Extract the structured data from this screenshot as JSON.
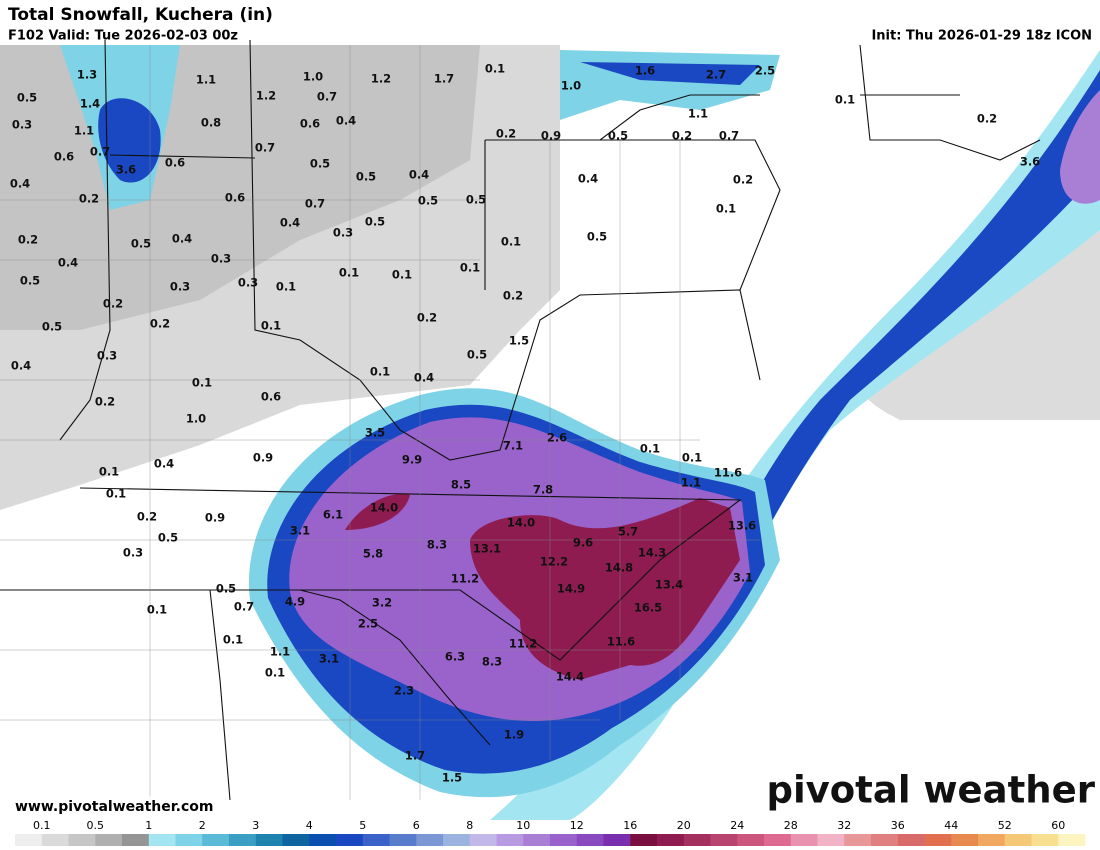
{
  "header": {
    "title": "Total Snowfall, Kuchera (in)",
    "valid": "F102 Valid: Tue 2026-02-03 00z",
    "init": "Init: Thu 2026-01-29 18z ICON"
  },
  "map": {
    "labels": [
      "1.3",
      "1.1",
      "1.0",
      "1.2",
      "1.7",
      "0.1",
      "1.0",
      "1.6",
      "2.7",
      "2.5",
      "0.1",
      "0.5",
      "1.4",
      "1.2",
      "0.7",
      "1.1",
      "0.3",
      "1.1",
      "0.8",
      "0.6",
      "0.4",
      "0.2",
      "0.9",
      "0.5",
      "0.2",
      "0.7",
      "0.2",
      "0.6",
      "0.7",
      "0.6",
      "0.7",
      "0.5",
      "3.6",
      "0.5",
      "0.4",
      "3.6",
      "0.4",
      "0.2",
      "0.6",
      "0.7",
      "0.5",
      "0.5",
      "0.4",
      "0.2",
      "0.4",
      "0.3",
      "0.5",
      "0.1",
      "0.2",
      "0.5",
      "0.4",
      "0.1",
      "0.5",
      "0.4",
      "0.3",
      "0.1",
      "0.1",
      "0.1",
      "0.5",
      "0.3",
      "0.3",
      "0.1",
      "0.2",
      "0.2",
      "0.2",
      "0.5",
      "0.2",
      "0.1",
      "1.5",
      "0.3",
      "0.5",
      "0.4",
      "0.1",
      "0.4",
      "0.1",
      "0.6",
      "0.2",
      "1.0",
      "3.5",
      "2.6",
      "7.1",
      "0.1",
      "0.4",
      "0.9",
      "9.9",
      "0.1",
      "0.1",
      "11.6",
      "8.5",
      "1.1",
      "7.8",
      "0.1",
      "6.1",
      "14.0",
      "0.2",
      "0.9",
      "14.0",
      "13.6",
      "3.1",
      "5.7",
      "0.5",
      "8.3",
      "9.6",
      "0.3",
      "5.8",
      "13.1",
      "14.3",
      "12.2",
      "14.8",
      "11.2",
      "3.1",
      "13.4",
      "0.5",
      "14.9",
      "4.9",
      "0.7",
      "3.2",
      "16.5",
      "0.1",
      "2.5",
      "0.1",
      "11.2",
      "11.6",
      "1.1",
      "6.3",
      "3.1",
      "8.3",
      "0.1",
      "14.4",
      "2.3",
      "1.9",
      "1.7",
      "1.5"
    ]
  },
  "footer": {
    "url": "www.pivotalweather.com",
    "logo": "pivotal weather"
  },
  "colorbar": {
    "labels": [
      "0.1",
      "0.5",
      "1",
      "2",
      "3",
      "4",
      "5",
      "6",
      "8",
      "10",
      "12",
      "16",
      "20",
      "24",
      "28",
      "32",
      "36",
      "44",
      "52",
      "60"
    ],
    "colors": [
      "#eeeeee",
      "#dadada",
      "#c6c6c6",
      "#b0b0b0",
      "#959595",
      "#a3e6f2",
      "#7fd3e6",
      "#5bbad6",
      "#3b9fc4",
      "#1f83b0",
      "#0e65a0",
      "#0b4fb0",
      "#1a47c2",
      "#3a62c8",
      "#5a7ccc",
      "#7b98d4",
      "#9bb3de",
      "#c3b9e8",
      "#b89ae0",
      "#a97fd6",
      "#9a63cc",
      "#8a4abf",
      "#7a2fae",
      "#7a1040",
      "#8e1c50",
      "#a3305f",
      "#b8436e",
      "#cc567e",
      "#de6a92",
      "#e892b0",
      "#f0b4c6",
      "#e89898",
      "#e08080",
      "#d86a6a",
      "#e07050",
      "#e88a50",
      "#f0a860",
      "#f5c878",
      "#f8e090",
      "#fdf5c0"
    ]
  }
}
